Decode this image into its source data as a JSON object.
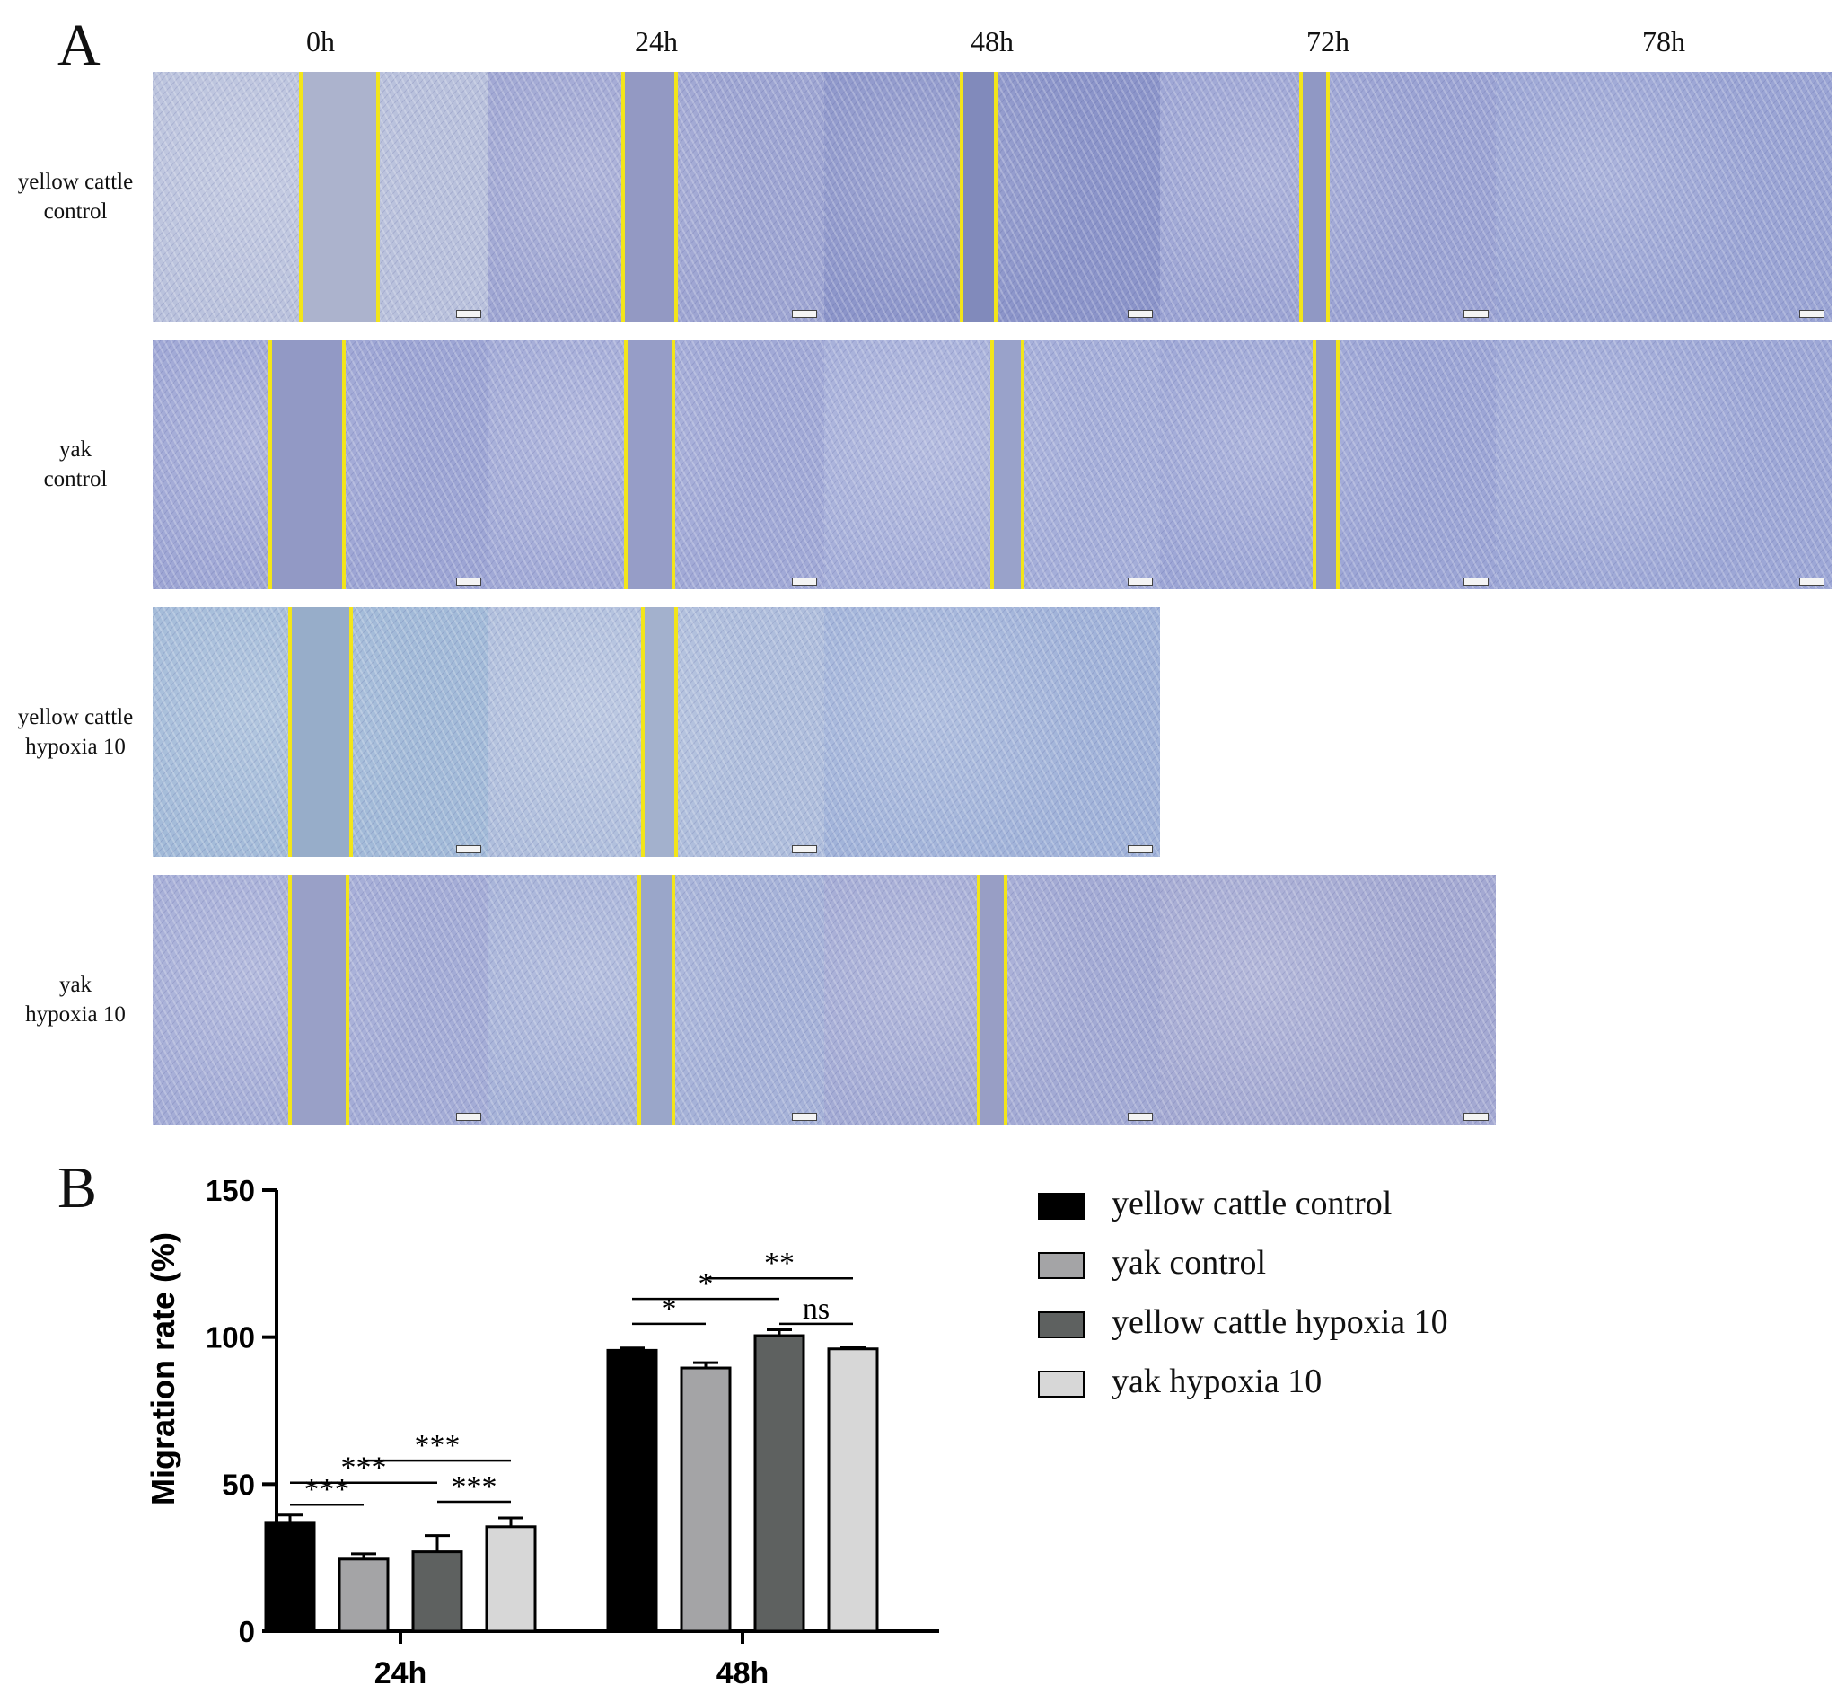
{
  "panel_a": {
    "letter": "A",
    "timepoints": [
      "0h",
      "24h",
      "48h",
      "72h",
      "78h"
    ],
    "rows": [
      {
        "label": [
          "yellow cattle",
          "control"
        ],
        "tiles": [
          {
            "tone": "#b9c1dc",
            "gap": [
              0.44,
              0.67
            ]
          },
          {
            "tone": "#9ea5d2",
            "gap": [
              0.4,
              0.56
            ]
          },
          {
            "tone": "#8b94c9",
            "gap": [
              0.41,
              0.51
            ]
          },
          {
            "tone": "#9ba3d3",
            "gap": [
              0.42,
              0.5
            ]
          },
          {
            "tone": "#9aa4d4",
            "gap": null
          }
        ]
      },
      {
        "label": [
          "yak",
          "control"
        ],
        "tiles": [
          {
            "tone": "#9da5d4",
            "gap": [
              0.35,
              0.57
            ]
          },
          {
            "tone": "#a1a9d6",
            "gap": [
              0.41,
              0.55
            ]
          },
          {
            "tone": "#a5aed9",
            "gap": [
              0.5,
              0.59
            ]
          },
          {
            "tone": "#9ca5d5",
            "gap": [
              0.46,
              0.53
            ]
          },
          {
            "tone": "#9da7d6",
            "gap": null
          }
        ]
      },
      {
        "label": [
          "yellow cattle",
          "hypoxia 10"
        ],
        "tiles": [
          {
            "tone": "#a2bad8",
            "gap": [
              0.41,
              0.59
            ]
          },
          {
            "tone": "#afbedc",
            "gap": [
              0.46,
              0.56
            ]
          },
          {
            "tone": "#a1b3d9",
            "gap": null
          },
          null,
          null
        ]
      },
      {
        "label": [
          "yak",
          "hypoxia 10"
        ],
        "tiles": [
          {
            "tone": "#a4acd6",
            "gap": [
              0.41,
              0.58
            ]
          },
          {
            "tone": "#a6b2d8",
            "gap": [
              0.45,
              0.55
            ]
          },
          {
            "tone": "#a3aad4",
            "gap": [
              0.46,
              0.54
            ]
          },
          {
            "tone": "#a4a9d2",
            "gap": null
          },
          null
        ]
      }
    ]
  },
  "panel_b": {
    "letter": "B",
    "legend": [
      {
        "label": "yellow cattle control",
        "color": "#000000"
      },
      {
        "label": "yak control",
        "color": "#a4a4a6"
      },
      {
        "label": "yellow cattle hypoxia 10",
        "color": "#5e6160"
      },
      {
        "label": "yak hypoxia 10",
        "color": "#d7d7d7"
      }
    ]
  },
  "chart_data": {
    "type": "bar",
    "ylabel": "Migration rate (%)",
    "ylim": [
      0,
      150
    ],
    "yticks": [
      0,
      50,
      100,
      150
    ],
    "categories": [
      "24h",
      "48h"
    ],
    "series": [
      {
        "name": "yellow cattle control",
        "values": [
          37,
          95.5
        ],
        "errors": [
          2.5,
          0.8
        ],
        "color": "#000000"
      },
      {
        "name": "yak control",
        "values": [
          24.5,
          89.5
        ],
        "errors": [
          1.8,
          1.8
        ],
        "color": "#a4a4a6"
      },
      {
        "name": "yellow cattle hypoxia 10",
        "values": [
          27,
          100.5
        ],
        "errors": [
          5.5,
          2
        ],
        "color": "#5e6160"
      },
      {
        "name": "yak hypoxia 10",
        "values": [
          35.5,
          96
        ],
        "errors": [
          3,
          0.4
        ],
        "color": "#d7d7d7"
      }
    ],
    "significance": [
      {
        "category": 0,
        "from": 0,
        "to": 1,
        "level": 43,
        "label": "***"
      },
      {
        "category": 0,
        "from": 0,
        "to": 2,
        "level": 50.5,
        "label": "***"
      },
      {
        "category": 0,
        "from": 1,
        "to": 3,
        "level": 58,
        "label": "***"
      },
      {
        "category": 0,
        "from": 2,
        "to": 3,
        "level": 44,
        "label": "***"
      },
      {
        "category": 1,
        "from": 0,
        "to": 1,
        "level": 104.5,
        "label": "*"
      },
      {
        "category": 1,
        "from": 0,
        "to": 2,
        "level": 113,
        "label": "*"
      },
      {
        "category": 1,
        "from": 1,
        "to": 3,
        "level": 120,
        "label": "**"
      },
      {
        "category": 1,
        "from": 2,
        "to": 3,
        "level": 104.5,
        "label": "ns"
      }
    ]
  }
}
